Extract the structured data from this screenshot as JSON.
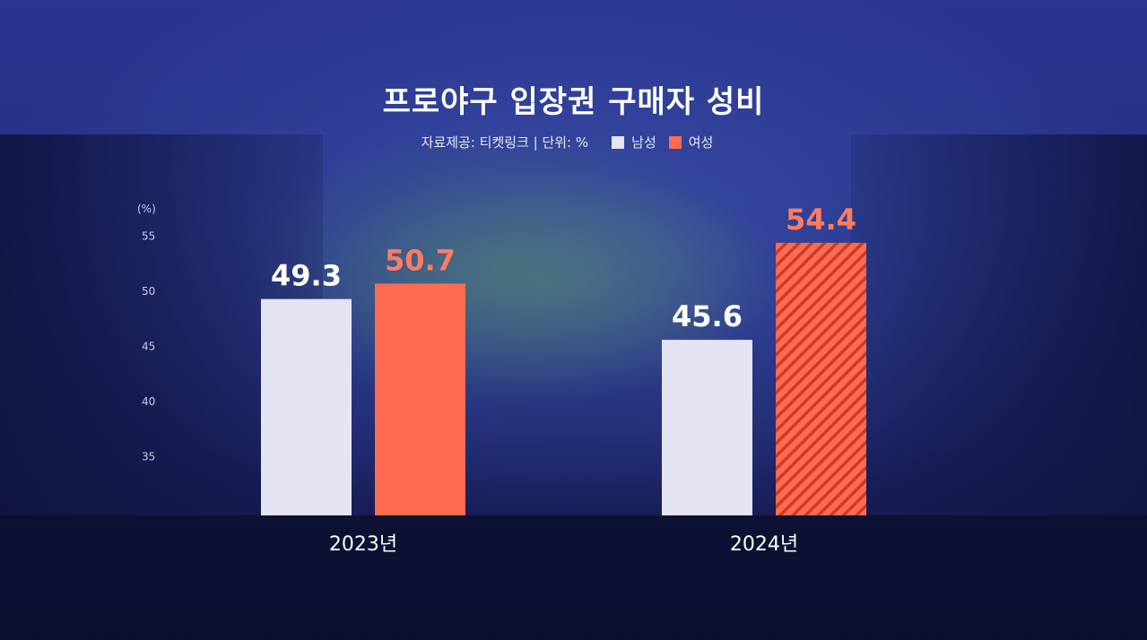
{
  "title": "프로야구 입장권 구매자 성비",
  "source": "자료제공: 티켓링크 | 단위: %",
  "chart_data": {
    "type": "bar",
    "title": "프로야구 입장권 구매자 성비",
    "unit_label": "(%)",
    "categories": [
      "2023년",
      "2024년"
    ],
    "series": [
      {
        "name": "남성",
        "values": [
          49.3,
          45.6
        ],
        "color": "#e4e4f4"
      },
      {
        "name": "여성",
        "values": [
          50.7,
          54.4
        ],
        "color": "#ff6b4f"
      }
    ],
    "y_ticks": [
      55,
      50,
      45,
      40,
      35
    ],
    "ylim": [
      35,
      55
    ],
    "legend": "top-center",
    "grid": false
  }
}
